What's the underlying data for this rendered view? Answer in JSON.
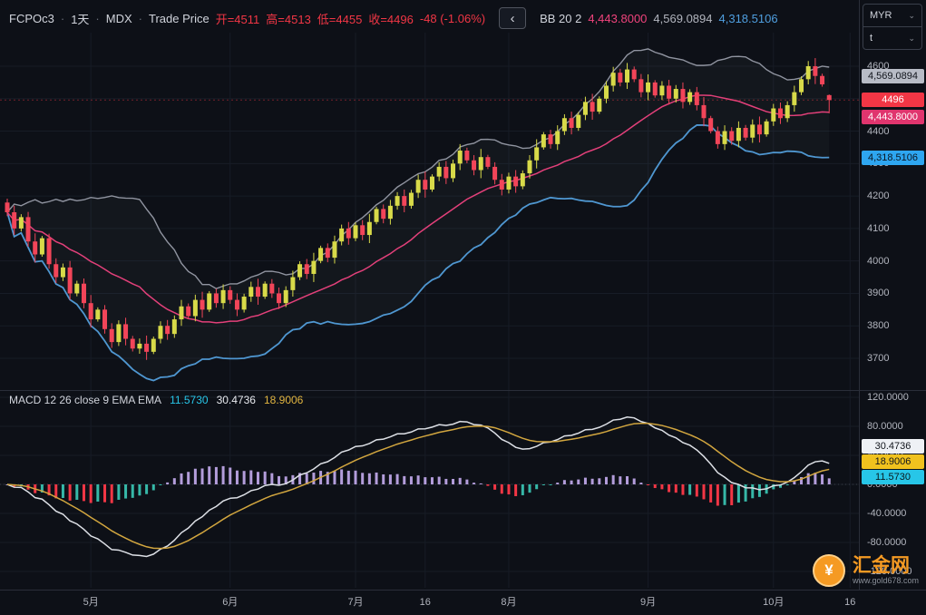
{
  "header": {
    "symbol": "FCPOc3",
    "separator": "·",
    "interval": "1天",
    "exchange": "MDX",
    "series_type": "Trade Price",
    "ohlc": {
      "open": "开=4511",
      "high": "高=4513",
      "low": "低=4455",
      "close": "收=4496",
      "change": "-48 (-1.06%)"
    },
    "back_button": "‹",
    "indicator": {
      "name": "BB 20 2",
      "middle": "4,443.8000",
      "upper": "4,569.0894",
      "lower": "4,318.5106"
    }
  },
  "macd_header": {
    "title": "MACD 12 26 close 9 EMA EMA",
    "hist_value": "11.5730",
    "macd_value": "30.4736",
    "signal_value": "18.9006"
  },
  "axis": {
    "currency": "MYR",
    "scale_mode": "t",
    "chevron": "⌄",
    "price_labels": [
      "4600",
      "4500",
      "4400",
      "4300",
      "4200",
      "4100",
      "4000",
      "3900",
      "3800",
      "3700"
    ],
    "price_badges": [
      {
        "name": "bb-upper-badge",
        "text": "4,569.0894",
        "value": 4569.0894,
        "bg": "#b8bcc6",
        "fg": "#11151c"
      },
      {
        "name": "last-price-badge",
        "text": "4496",
        "value": 4496,
        "bg": "#f23645",
        "fg": "#ffffff"
      },
      {
        "name": "bb-middle-badge",
        "text": "4,443.8000",
        "value": 4443.8,
        "bg": "#e0356e",
        "fg": "#ffffff"
      },
      {
        "name": "bb-lower-badge",
        "text": "4,318.5106",
        "value": 4318.5106,
        "bg": "#2ea6f0",
        "fg": "#0a1622"
      }
    ],
    "macd_labels": [
      "120.0000",
      "80.0000",
      "40.0000",
      "0.0000",
      "-40.0000",
      "-80.0000",
      "-120.0000"
    ],
    "macd_badges": [
      {
        "name": "macd-line-badge",
        "text": "30.4736",
        "bg": "#eef1f5",
        "fg": "#11151c"
      },
      {
        "name": "signal-line-badge",
        "text": "18.9006",
        "bg": "#f0c21e",
        "fg": "#11151c"
      },
      {
        "name": "histogram-badge",
        "text": "11.5730",
        "bg": "#27c6e8",
        "fg": "#0a1a1f"
      }
    ]
  },
  "time_axis": {
    "ticks": [
      {
        "label": "5月",
        "index": 12
      },
      {
        "label": "6月",
        "index": 32
      },
      {
        "label": "7月",
        "index": 50
      },
      {
        "label": "16",
        "index": 60
      },
      {
        "label": "8月",
        "index": 72
      },
      {
        "label": "9月",
        "index": 92
      },
      {
        "label": "10月",
        "index": 110
      },
      {
        "label": "16",
        "index": 121
      }
    ]
  },
  "watermark": {
    "symbol": "¥",
    "title": "汇金网",
    "url": "www.gold678.com"
  },
  "colors": {
    "bg": "#0d1017",
    "grid": "#171c26",
    "up": "#d8da49",
    "down": "#f24559",
    "bb_upper": "#9094a0",
    "bb_middle": "#e3407a",
    "bb_lower": "#4f97d1",
    "bb_fill": "rgba(144,148,160,0.05)",
    "hist_pos": "#b39ddb",
    "hist_neg": "#36b8a8",
    "hist_neg_fall": "#f23645",
    "macd_line": "#dde0e6",
    "signal_line": "#d2a63f",
    "last_price": "#f23645",
    "zero_line": "#3a3f4b"
  },
  "chart_data": {
    "type": "candlestick",
    "symbol": "FCPOc3",
    "interval": "1D",
    "currency": "MYR",
    "price_range": [
      3700,
      4600
    ],
    "last_price": 4496,
    "last_change": -48,
    "last_change_pct": -1.06,
    "bollinger": {
      "period": 20,
      "stddev": 2,
      "last": {
        "middle": 4443.8,
        "upper": 4569.0894,
        "lower": 4318.5106
      }
    },
    "macd": {
      "fast": 12,
      "slow": 26,
      "source": "close",
      "signal_period": 9,
      "range": [
        -120,
        120
      ],
      "last": {
        "macd": 30.4736,
        "signal": 18.9006,
        "hist": 11.573
      }
    },
    "candles": [
      [
        4180,
        4192,
        4138,
        4150
      ],
      [
        4150,
        4170,
        4080,
        4100
      ],
      [
        4100,
        4144,
        4091,
        4135
      ],
      [
        4135,
        4151,
        4044,
        4060
      ],
      [
        4060,
        4085,
        3995,
        4020
      ],
      [
        4020,
        4077,
        4013,
        4070
      ],
      [
        4070,
        4084,
        3976,
        3990
      ],
      [
        3990,
        4008,
        3932,
        3950
      ],
      [
        3950,
        3992,
        3938,
        3980
      ],
      [
        3980,
        4000,
        3880,
        3900
      ],
      [
        3900,
        3939,
        3891,
        3930
      ],
      [
        3930,
        3946,
        3854,
        3870
      ],
      [
        3870,
        3895,
        3795,
        3820
      ],
      [
        3820,
        3857,
        3813,
        3850
      ],
      [
        3850,
        3864,
        3776,
        3790
      ],
      [
        3790,
        3808,
        3732,
        3750
      ],
      [
        3750,
        3817,
        3738,
        3805
      ],
      [
        3805,
        3825,
        3740,
        3760
      ],
      [
        3760,
        3769,
        3721,
        3730
      ],
      [
        3730,
        3761,
        3714,
        3745
      ],
      [
        3745,
        3770,
        3695,
        3720
      ],
      [
        3720,
        3767,
        3713,
        3760
      ],
      [
        3760,
        3814,
        3746,
        3800
      ],
      [
        3800,
        3818,
        3757,
        3775
      ],
      [
        3775,
        3832,
        3763,
        3820
      ],
      [
        3820,
        3880,
        3800,
        3860
      ],
      [
        3860,
        3869,
        3821,
        3830
      ],
      [
        3830,
        3896,
        3814,
        3880
      ],
      [
        3880,
        3905,
        3825,
        3850
      ],
      [
        3850,
        3907,
        3843,
        3900
      ],
      [
        3900,
        3914,
        3856,
        3870
      ],
      [
        3870,
        3928,
        3852,
        3910
      ],
      [
        3910,
        3922,
        3868,
        3880
      ],
      [
        3880,
        3900,
        3830,
        3850
      ],
      [
        3850,
        3899,
        3841,
        3890
      ],
      [
        3890,
        3936,
        3874,
        3920
      ],
      [
        3920,
        3945,
        3865,
        3890
      ],
      [
        3890,
        3937,
        3883,
        3930
      ],
      [
        3930,
        3944,
        3886,
        3900
      ],
      [
        3900,
        3918,
        3852,
        3870
      ],
      [
        3870,
        3922,
        3858,
        3910
      ],
      [
        3910,
        3970,
        3890,
        3950
      ],
      [
        3950,
        3999,
        3941,
        3990
      ],
      [
        3990,
        4006,
        3944,
        3960
      ],
      [
        3960,
        4025,
        3935,
        4000
      ],
      [
        4000,
        4047,
        3993,
        4040
      ],
      [
        4040,
        4054,
        3996,
        4010
      ],
      [
        4010,
        4078,
        3992,
        4060
      ],
      [
        4060,
        4112,
        4048,
        4100
      ],
      [
        4100,
        4120,
        4050,
        4070
      ],
      [
        4070,
        4119,
        4061,
        4110
      ],
      [
        4110,
        4126,
        4064,
        4080
      ],
      [
        4080,
        4145,
        4055,
        4120
      ],
      [
        4120,
        4167,
        4113,
        4160
      ],
      [
        4160,
        4174,
        4116,
        4130
      ],
      [
        4130,
        4188,
        4112,
        4170
      ],
      [
        4170,
        4212,
        4158,
        4200
      ],
      [
        4200,
        4220,
        4150,
        4170
      ],
      [
        4170,
        4219,
        4161,
        4210
      ],
      [
        4210,
        4266,
        4194,
        4250
      ],
      [
        4250,
        4275,
        4195,
        4220
      ],
      [
        4220,
        4267,
        4213,
        4260
      ],
      [
        4260,
        4304,
        4246,
        4290
      ],
      [
        4290,
        4308,
        4237,
        4255
      ],
      [
        4255,
        4312,
        4243,
        4300
      ],
      [
        4300,
        4360,
        4280,
        4340
      ],
      [
        4340,
        4349,
        4301,
        4310
      ],
      [
        4310,
        4326,
        4264,
        4280
      ],
      [
        4280,
        4345,
        4255,
        4320
      ],
      [
        4320,
        4327,
        4283,
        4290
      ],
      [
        4290,
        4304,
        4236,
        4250
      ],
      [
        4250,
        4268,
        4202,
        4220
      ],
      [
        4220,
        4272,
        4208,
        4260
      ],
      [
        4260,
        4280,
        4210,
        4230
      ],
      [
        4230,
        4279,
        4221,
        4270
      ],
      [
        4270,
        4326,
        4254,
        4310
      ],
      [
        4310,
        4375,
        4285,
        4350
      ],
      [
        4350,
        4397,
        4343,
        4390
      ],
      [
        4390,
        4404,
        4346,
        4360
      ],
      [
        4360,
        4418,
        4342,
        4400
      ],
      [
        4400,
        4452,
        4388,
        4440
      ],
      [
        4440,
        4460,
        4390,
        4410
      ],
      [
        4410,
        4459,
        4401,
        4450
      ],
      [
        4450,
        4506,
        4434,
        4490
      ],
      [
        4490,
        4515,
        4435,
        4460
      ],
      [
        4460,
        4507,
        4453,
        4500
      ],
      [
        4500,
        4554,
        4486,
        4540
      ],
      [
        4540,
        4598,
        4522,
        4580
      ],
      [
        4580,
        4592,
        4538,
        4550
      ],
      [
        4550,
        4610,
        4530,
        4590
      ],
      [
        4590,
        4599,
        4551,
        4560
      ],
      [
        4560,
        4576,
        4504,
        4520
      ],
      [
        4520,
        4575,
        4495,
        4550
      ],
      [
        4550,
        4557,
        4503,
        4510
      ],
      [
        4510,
        4554,
        4496,
        4540
      ],
      [
        4540,
        4558,
        4482,
        4500
      ],
      [
        4500,
        4542,
        4488,
        4530
      ],
      [
        4530,
        4550,
        4470,
        4490
      ],
      [
        4490,
        4529,
        4481,
        4520
      ],
      [
        4520,
        4536,
        4464,
        4480
      ],
      [
        4480,
        4505,
        4415,
        4440
      ],
      [
        4440,
        4447,
        4393,
        4400
      ],
      [
        4400,
        4414,
        4346,
        4360
      ],
      [
        4360,
        4418,
        4342,
        4400
      ],
      [
        4400,
        4412,
        4358,
        4370
      ],
      [
        4370,
        4430,
        4350,
        4410
      ],
      [
        4410,
        4419,
        4371,
        4380
      ],
      [
        4380,
        4436,
        4364,
        4420
      ],
      [
        4420,
        4445,
        4365,
        4390
      ],
      [
        4390,
        4437,
        4383,
        4430
      ],
      [
        4430,
        4484,
        4416,
        4470
      ],
      [
        4470,
        4488,
        4422,
        4440
      ],
      [
        4440,
        4492,
        4428,
        4480
      ],
      [
        4480,
        4540,
        4460,
        4520
      ],
      [
        4520,
        4569,
        4511,
        4560
      ],
      [
        4560,
        4616,
        4544,
        4600
      ],
      [
        4600,
        4625,
        4545,
        4570
      ],
      [
        4570,
        4577,
        4537,
        4544
      ],
      [
        4511,
        4513,
        4455,
        4496
      ]
    ]
  }
}
